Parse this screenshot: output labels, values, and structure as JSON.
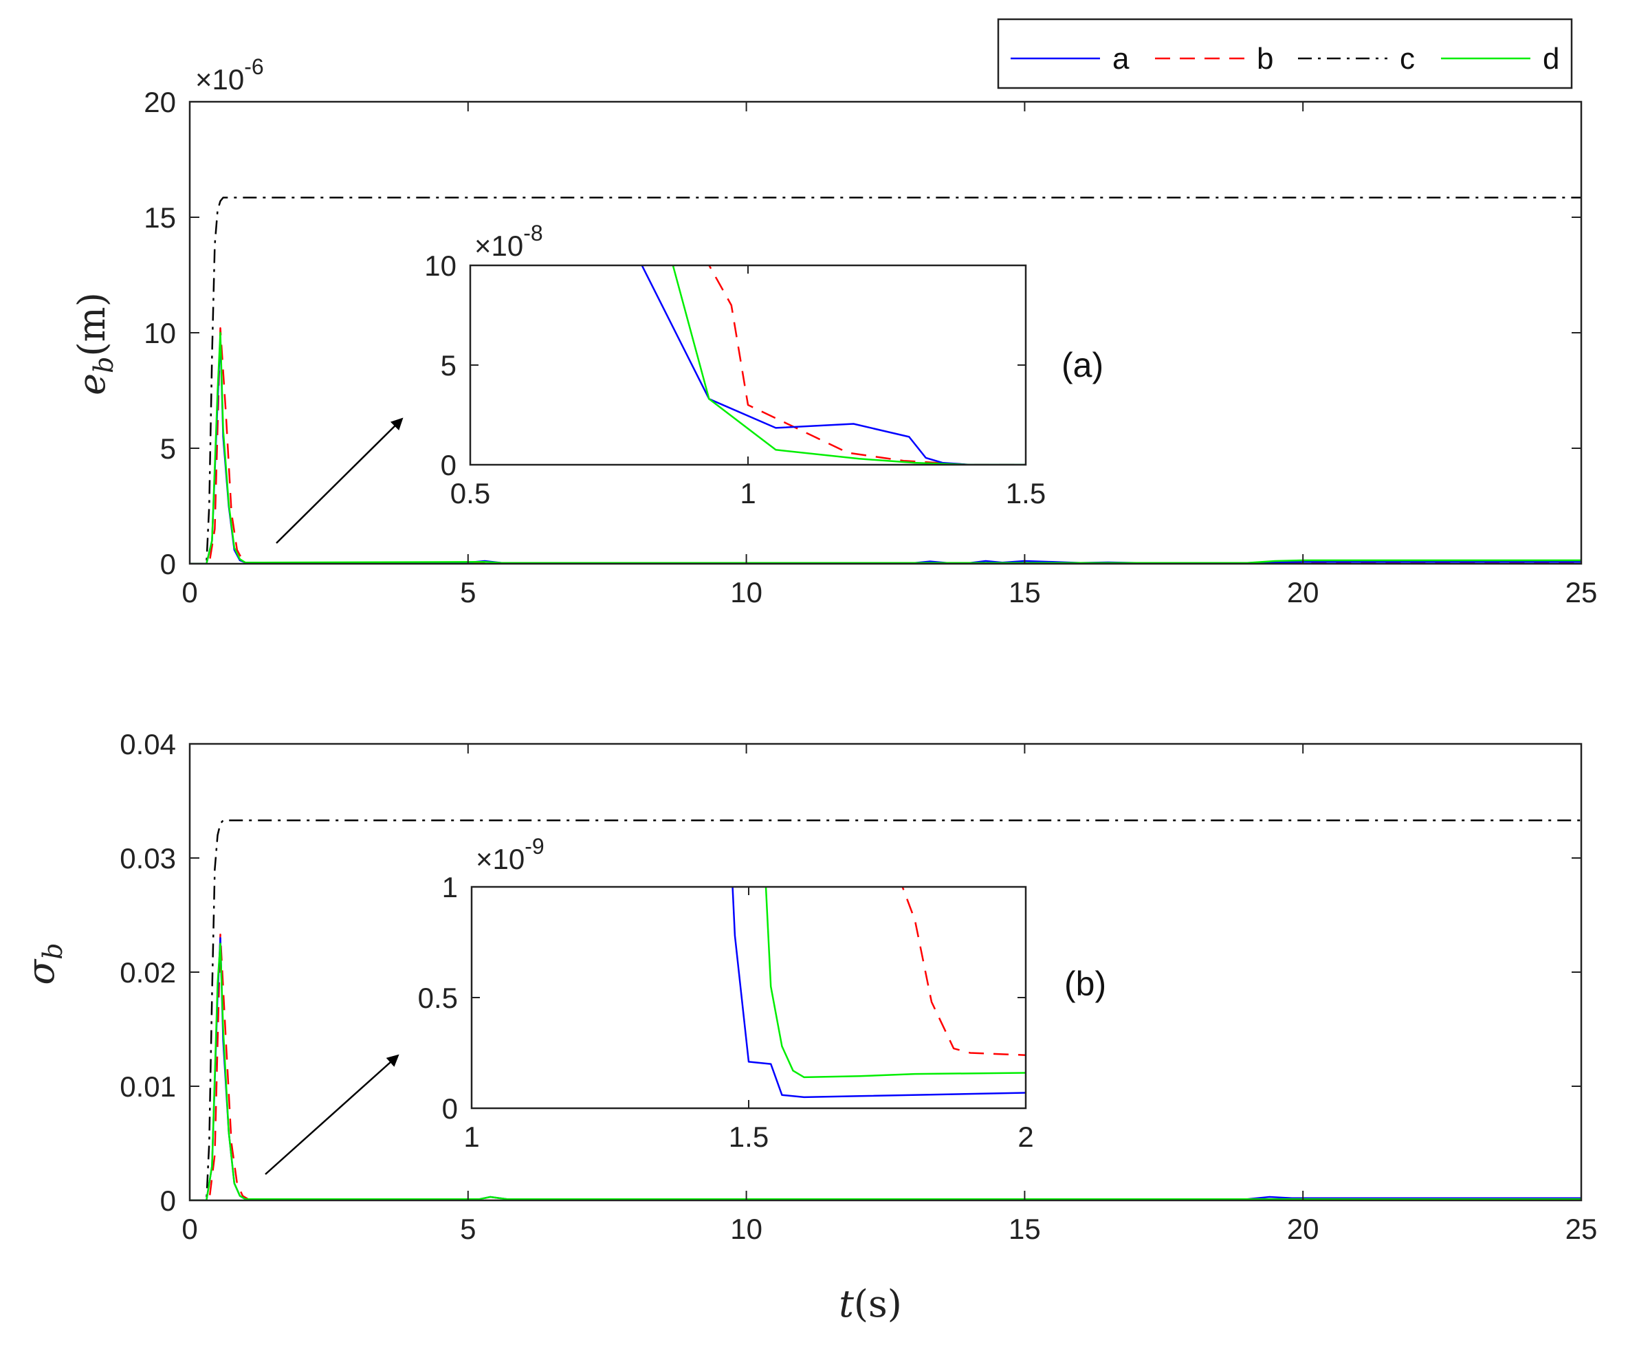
{
  "colors": {
    "a": "#0000ff",
    "b": "#ff0000",
    "c": "#000000",
    "d": "#00ee00"
  },
  "legend": {
    "a": "a",
    "b": "b",
    "c": "c",
    "d": "d"
  },
  "xlabel": {
    "main": "t",
    "unit": "(s)"
  },
  "chart_data": [
    {
      "type": "line",
      "panel_label": "(a)",
      "ylabel": {
        "main": "e",
        "sub": "b",
        "unit": "(m)"
      },
      "xlim": [
        0,
        25
      ],
      "ylim": [
        0,
        20
      ],
      "xticks": [
        "0",
        "5",
        "10",
        "15",
        "20",
        "25"
      ],
      "yticks": [
        "0",
        "5",
        "10",
        "15",
        "20"
      ],
      "exponent": {
        "base": "×10",
        "power": "-6"
      },
      "series": [
        {
          "name": "a",
          "x": [
            0,
            0.3,
            0.4,
            0.5,
            0.55,
            0.6,
            0.7,
            0.8,
            0.9,
            1.0,
            5,
            5.3,
            5.6,
            6,
            13,
            13.3,
            13.6,
            14,
            14.3,
            14.6,
            15,
            15.5,
            16,
            16.5,
            17,
            19,
            20,
            22,
            25
          ],
          "y": [
            0,
            0,
            1.0,
            7.0,
            9.8,
            5.5,
            2.5,
            0.6,
            0.15,
            0.05,
            0.05,
            0.12,
            0.04,
            0.03,
            0.03,
            0.1,
            0.04,
            0.03,
            0.12,
            0.05,
            0.12,
            0.08,
            0.04,
            0.06,
            0.04,
            0.04,
            0.08,
            0.08,
            0.08
          ]
        },
        {
          "name": "b",
          "x": [
            0,
            0.35,
            0.45,
            0.55,
            0.65,
            0.75,
            0.85,
            0.95,
            1.05,
            1.2,
            20,
            25
          ],
          "y": [
            0,
            0,
            1.5,
            10.2,
            6.5,
            2.2,
            0.6,
            0.15,
            0.03,
            0.01,
            0.02,
            0.02
          ]
        },
        {
          "name": "c",
          "x": [
            0,
            0.3,
            0.35,
            0.4,
            0.45,
            0.5,
            0.55,
            0.6,
            25
          ],
          "y": [
            0,
            0,
            2.5,
            9.0,
            13.8,
            15.3,
            15.7,
            15.85,
            15.85
          ]
        },
        {
          "name": "d",
          "x": [
            0,
            0.3,
            0.4,
            0.5,
            0.55,
            0.6,
            0.7,
            0.8,
            0.9,
            1.0,
            5.3,
            5.6,
            6,
            19,
            19.5,
            20,
            25
          ],
          "y": [
            0,
            0,
            1.0,
            7.5,
            10.0,
            5.8,
            2.6,
            0.7,
            0.2,
            0.05,
            0.08,
            0.04,
            0.04,
            0.04,
            0.12,
            0.15,
            0.15
          ]
        }
      ],
      "inset": {
        "xlim": [
          0.5,
          1.5
        ],
        "ylim": [
          0,
          10
        ],
        "xticks": [
          "0.5",
          "1",
          "1.5"
        ],
        "yticks": [
          "0",
          "5",
          "10"
        ],
        "exponent": {
          "base": "×10",
          "power": "-8"
        },
        "series": [
          {
            "name": "a",
            "x": [
              0.8,
              0.93,
              1.05,
              1.19,
              1.29,
              1.32,
              1.35,
              1.4,
              1.5
            ],
            "y": [
              10.5,
              3.3,
              1.85,
              2.05,
              1.4,
              0.35,
              0.1,
              0.0,
              0.0
            ]
          },
          {
            "name": "b",
            "x": [
              0.92,
              0.97,
              1.0,
              1.09,
              1.18,
              1.28,
              1.4,
              1.5
            ],
            "y": [
              10.5,
              8.0,
              3.0,
              1.8,
              0.6,
              0.2,
              0.0,
              0.0
            ]
          },
          {
            "name": "d",
            "x": [
              0.86,
              0.93,
              1.05,
              1.2,
              1.3,
              1.4,
              1.5
            ],
            "y": [
              10.5,
              3.3,
              0.75,
              0.3,
              0.1,
              0.0,
              0.0
            ]
          }
        ]
      }
    },
    {
      "type": "line",
      "panel_label": "(b)",
      "ylabel": {
        "main": "σ",
        "sub": "b",
        "unit": ""
      },
      "xlim": [
        0,
        25
      ],
      "ylim": [
        0,
        0.04
      ],
      "xticks": [
        "0",
        "5",
        "10",
        "15",
        "20",
        "25"
      ],
      "yticks": [
        "0",
        "0.01",
        "0.02",
        "0.03",
        "0.04"
      ],
      "series": [
        {
          "name": "a",
          "x": [
            0,
            0.3,
            0.4,
            0.5,
            0.55,
            0.6,
            0.7,
            0.8,
            0.9,
            1.0,
            5.2,
            5.4,
            5.7,
            19,
            19.4,
            19.8,
            25
          ],
          "y": [
            0,
            0,
            0.003,
            0.018,
            0.023,
            0.014,
            0.006,
            0.0015,
            0.0004,
            0.0001,
            0.0001,
            0.0003,
            0.0001,
            0.0001,
            0.0003,
            0.0002,
            0.0002
          ]
        },
        {
          "name": "b",
          "x": [
            0,
            0.35,
            0.45,
            0.55,
            0.65,
            0.75,
            0.85,
            0.95,
            1.05,
            1.2,
            25
          ],
          "y": [
            0,
            0,
            0.004,
            0.0233,
            0.014,
            0.005,
            0.0015,
            0.0004,
            0.0001,
            0.0,
            0.0
          ]
        },
        {
          "name": "c",
          "x": [
            0,
            0.3,
            0.35,
            0.4,
            0.45,
            0.5,
            0.55,
            0.6,
            25
          ],
          "y": [
            0,
            0,
            0.005,
            0.018,
            0.029,
            0.032,
            0.033,
            0.0333,
            0.0333
          ]
        },
        {
          "name": "d",
          "x": [
            0,
            0.3,
            0.4,
            0.5,
            0.55,
            0.6,
            0.7,
            0.8,
            0.9,
            1.0,
            5.2,
            5.4,
            5.7,
            25
          ],
          "y": [
            0,
            0,
            0.003,
            0.019,
            0.0225,
            0.015,
            0.006,
            0.0015,
            0.0004,
            0.0001,
            0.0001,
            0.0003,
            0.0001,
            0.0001
          ]
        }
      ],
      "inset": {
        "xlim": [
          1,
          2
        ],
        "ylim": [
          0,
          1
        ],
        "xticks": [
          "1",
          "1.5",
          "2"
        ],
        "yticks": [
          "0",
          "0.5",
          "1"
        ],
        "exponent": {
          "base": "×10",
          "power": "-9"
        },
        "series": [
          {
            "name": "a",
            "x": [
              1.47,
              1.475,
              1.5,
              1.54,
              1.56,
              1.6,
              1.7,
              2.0
            ],
            "y": [
              1.05,
              0.78,
              0.21,
              0.2,
              0.06,
              0.05,
              0.055,
              0.07
            ]
          },
          {
            "name": "b",
            "x": [
              1.77,
              1.8,
              1.83,
              1.87,
              1.9,
              2.0
            ],
            "y": [
              1.05,
              0.85,
              0.48,
              0.27,
              0.25,
              0.24
            ]
          },
          {
            "name": "d",
            "x": [
              1.53,
              1.54,
              1.56,
              1.58,
              1.6,
              1.7,
              1.8,
              2.0
            ],
            "y": [
              1.05,
              0.55,
              0.28,
              0.17,
              0.14,
              0.145,
              0.155,
              0.16
            ]
          }
        ]
      }
    }
  ]
}
